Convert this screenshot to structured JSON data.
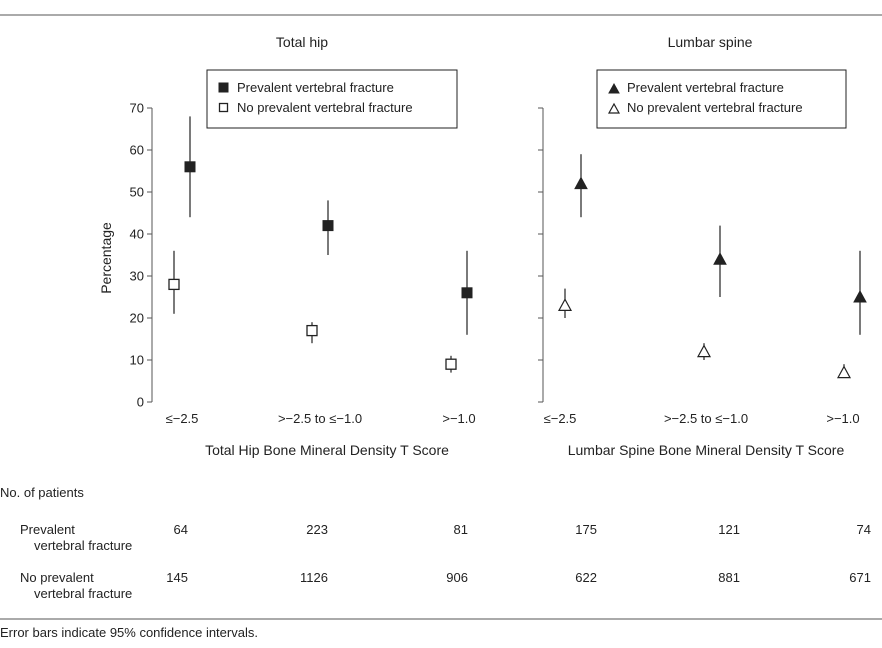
{
  "chart_data": [
    {
      "type": "scatter",
      "title": "Total hip",
      "xlabel": "Total Hip Bone Mineral Density T Score",
      "ylabel": "Percentage",
      "categories": [
        "≤−2.5",
        ">−2.5 to ≤−1.0",
        ">−1.0"
      ],
      "ylim": [
        0,
        70
      ],
      "yticks": [
        0,
        10,
        20,
        30,
        40,
        50,
        60,
        70
      ],
      "legend_position": "top-right",
      "marker_shape": "square",
      "series": [
        {
          "name": "Prevalent vertebral fracture",
          "filled": true,
          "values": [
            56,
            42,
            26
          ],
          "ci_low": [
            44,
            35,
            16
          ],
          "ci_high": [
            68,
            48,
            36
          ]
        },
        {
          "name": "No prevalent vertebral fracture",
          "filled": false,
          "values": [
            28,
            17,
            9
          ],
          "ci_low": [
            21,
            14,
            7
          ],
          "ci_high": [
            36,
            19,
            11
          ]
        }
      ]
    },
    {
      "type": "scatter",
      "title": "Lumbar spine",
      "xlabel": "Lumbar Spine Bone Mineral Density T Score",
      "ylabel": "",
      "categories": [
        "≤−2.5",
        ">−2.5 to ≤−1.0",
        ">−1.0"
      ],
      "ylim": [
        0,
        70
      ],
      "yticks": [
        0,
        10,
        20,
        30,
        40,
        50,
        60,
        70
      ],
      "legend_position": "top-right",
      "marker_shape": "triangle",
      "series": [
        {
          "name": "Prevalent vertebral fracture",
          "filled": true,
          "values": [
            52,
            34,
            25
          ],
          "ci_low": [
            44,
            25,
            16
          ],
          "ci_high": [
            59,
            42,
            36
          ]
        },
        {
          "name": "No prevalent vertebral fracture",
          "filled": false,
          "values": [
            23,
            12,
            7
          ],
          "ci_low": [
            20,
            10,
            6
          ],
          "ci_high": [
            27,
            14,
            9
          ]
        }
      ]
    }
  ],
  "patients_table": {
    "heading": "No. of patients",
    "rows": [
      {
        "label_line1": "Prevalent",
        "label_line2": "vertebral fracture",
        "values": [
          "64",
          "223",
          "81",
          "175",
          "121",
          "74"
        ]
      },
      {
        "label_line1": "No prevalent",
        "label_line2": "vertebral fracture",
        "values": [
          "145",
          "1126",
          "906",
          "622",
          "881",
          "671"
        ]
      }
    ]
  },
  "footnote": "Error bars indicate 95% confidence intervals."
}
